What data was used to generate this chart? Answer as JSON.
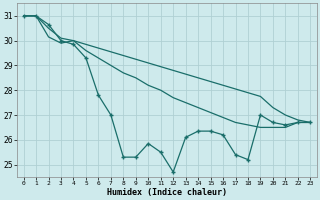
{
  "xlabel": "Humidex (Indice chaleur)",
  "bg_color": "#ceeaec",
  "grid_color": "#b0d0d3",
  "line_color": "#1a6e6a",
  "xlim": [
    -0.5,
    23.5
  ],
  "ylim": [
    24.5,
    31.5
  ],
  "yticks": [
    25,
    26,
    27,
    28,
    29,
    30,
    31
  ],
  "xticks": [
    0,
    1,
    2,
    3,
    4,
    5,
    6,
    7,
    8,
    9,
    10,
    11,
    12,
    13,
    14,
    15,
    16,
    17,
    18,
    19,
    20,
    21,
    22,
    23
  ],
  "series1_y": [
    31.0,
    31.0,
    30.5,
    30.1,
    30.0,
    29.6,
    29.3,
    29.0,
    28.7,
    28.5,
    28.2,
    28.0,
    27.7,
    27.5,
    27.3,
    27.1,
    26.9,
    26.7,
    26.6,
    26.5,
    26.5,
    26.5,
    26.7,
    26.7
  ],
  "series2_y": [
    31.0,
    31.0,
    30.15,
    29.9,
    30.0,
    29.85,
    29.7,
    29.55,
    29.4,
    29.25,
    29.1,
    28.95,
    28.8,
    28.65,
    28.5,
    28.35,
    28.2,
    28.05,
    27.9,
    27.75,
    27.3,
    27.0,
    26.8,
    26.7
  ],
  "series3_y": [
    31.0,
    31.0,
    30.65,
    30.0,
    29.85,
    29.3,
    27.8,
    27.0,
    25.3,
    25.3,
    25.85,
    25.5,
    24.7,
    26.1,
    26.35,
    26.35,
    26.2,
    25.4,
    25.2,
    27.0,
    26.7,
    26.6,
    26.7,
    26.7
  ]
}
